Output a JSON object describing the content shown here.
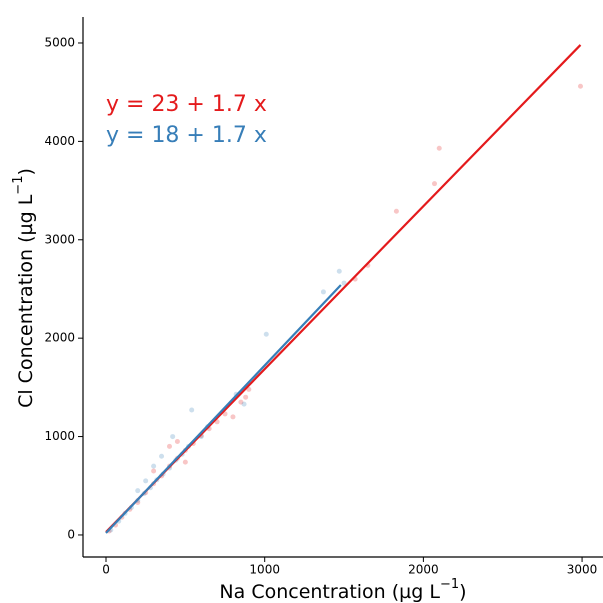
{
  "chart_data": {
    "type": "scatter",
    "x_label": {
      "text": "Na Concentration (µg L",
      "superscript": "−1",
      "suffix": ")"
    },
    "y_label": {
      "text": "Cl Concentration (µg L",
      "superscript": "−1",
      "suffix": ")"
    },
    "xlim": [
      -145,
      3113
    ],
    "ylim": [
      -224,
      5264
    ],
    "xticks": [
      0,
      1000,
      2000,
      3000
    ],
    "yticks": [
      0,
      1000,
      2000,
      3000,
      4000,
      5000
    ],
    "grid": false,
    "series": [
      {
        "color": "#e41a1c",
        "x": [
          20,
          60,
          100,
          150,
          200,
          250,
          300,
          350,
          400,
          450,
          500,
          550,
          600,
          650,
          700,
          750,
          800,
          850,
          880,
          450,
          500,
          400,
          300,
          900,
          1570,
          1650,
          1830,
          2070,
          2100,
          2990
        ],
        "y": [
          40,
          100,
          180,
          260,
          330,
          430,
          520,
          600,
          700,
          780,
          860,
          930,
          1010,
          1080,
          1150,
          1230,
          1200,
          1350,
          1400,
          950,
          740,
          900,
          650,
          1480,
          2600,
          2740,
          3290,
          3570,
          3930,
          4560
        ]
      },
      {
        "color": "#377eb8",
        "x": [
          30,
          80,
          120,
          160,
          200,
          240,
          280,
          320,
          360,
          400,
          440,
          480,
          520,
          300,
          350,
          250,
          200,
          420,
          540,
          600,
          640,
          820,
          870,
          1010,
          1370,
          1470,
          1500
        ],
        "y": [
          50,
          140,
          220,
          280,
          350,
          420,
          480,
          560,
          620,
          680,
          760,
          820,
          900,
          700,
          800,
          550,
          450,
          1000,
          1270,
          1000,
          1100,
          1430,
          1330,
          2040,
          2470,
          2680,
          2560
        ]
      }
    ],
    "fit_lines": [
      {
        "color": "#e41a1c",
        "x": [
          0,
          2990
        ],
        "y": [
          30,
          4980
        ]
      },
      {
        "color": "#377eb8",
        "x": [
          0,
          1480
        ],
        "y": [
          20,
          2540
        ]
      }
    ],
    "annotations": [
      {
        "text": "y = 23 + 1.7 x",
        "color": "#e41a1c"
      },
      {
        "text": "y = 18 + 1.7 x",
        "color": "#377eb8"
      }
    ]
  }
}
